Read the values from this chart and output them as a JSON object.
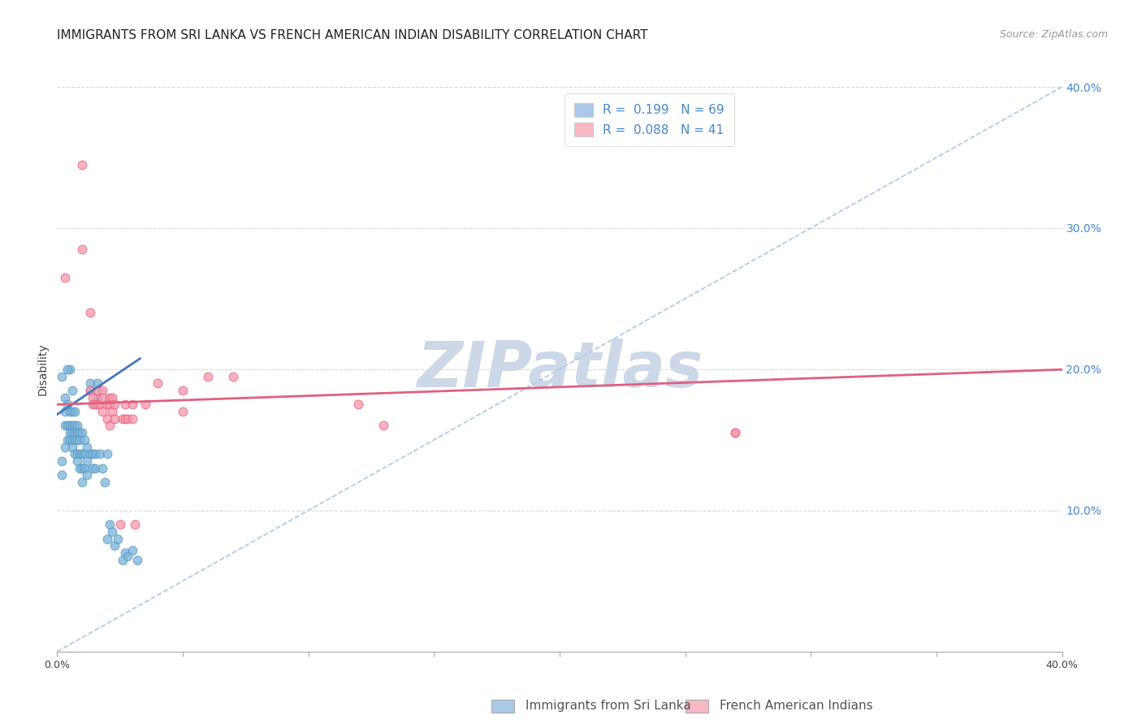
{
  "title": "IMMIGRANTS FROM SRI LANKA VS FRENCH AMERICAN INDIAN DISABILITY CORRELATION CHART",
  "source": "Source: ZipAtlas.com",
  "ylabel": "Disability",
  "xlim": [
    0.0,
    0.4
  ],
  "ylim": [
    0.0,
    0.4
  ],
  "xticks": [
    0.0,
    0.05,
    0.1,
    0.15,
    0.2,
    0.25,
    0.3,
    0.35,
    0.4
  ],
  "yticks": [
    0.1,
    0.2,
    0.3,
    0.4
  ],
  "xticklabels_visible": [
    "0.0%",
    "",
    "",
    "",
    "",
    "",
    "",
    "",
    "40.0%"
  ],
  "yticklabels": [
    "10.0%",
    "20.0%",
    "30.0%",
    "40.0%"
  ],
  "watermark": "ZIPatlas",
  "legend_R1": "R =  0.199",
  "legend_N1": "N = 69",
  "legend_R2": "R =  0.088",
  "legend_N2": "N = 41",
  "blue_scatter": [
    [
      0.002,
      0.195
    ],
    [
      0.003,
      0.18
    ],
    [
      0.003,
      0.17
    ],
    [
      0.003,
      0.16
    ],
    [
      0.004,
      0.175
    ],
    [
      0.004,
      0.16
    ],
    [
      0.004,
      0.15
    ],
    [
      0.005,
      0.2
    ],
    [
      0.005,
      0.17
    ],
    [
      0.005,
      0.16
    ],
    [
      0.005,
      0.155
    ],
    [
      0.005,
      0.15
    ],
    [
      0.006,
      0.185
    ],
    [
      0.006,
      0.17
    ],
    [
      0.006,
      0.16
    ],
    [
      0.006,
      0.155
    ],
    [
      0.006,
      0.15
    ],
    [
      0.006,
      0.145
    ],
    [
      0.007,
      0.17
    ],
    [
      0.007,
      0.16
    ],
    [
      0.007,
      0.155
    ],
    [
      0.007,
      0.15
    ],
    [
      0.007,
      0.14
    ],
    [
      0.008,
      0.16
    ],
    [
      0.008,
      0.155
    ],
    [
      0.008,
      0.15
    ],
    [
      0.008,
      0.14
    ],
    [
      0.008,
      0.135
    ],
    [
      0.009,
      0.155
    ],
    [
      0.009,
      0.15
    ],
    [
      0.009,
      0.14
    ],
    [
      0.009,
      0.13
    ],
    [
      0.01,
      0.155
    ],
    [
      0.01,
      0.14
    ],
    [
      0.01,
      0.13
    ],
    [
      0.01,
      0.12
    ],
    [
      0.011,
      0.15
    ],
    [
      0.011,
      0.14
    ],
    [
      0.011,
      0.13
    ],
    [
      0.012,
      0.145
    ],
    [
      0.012,
      0.135
    ],
    [
      0.012,
      0.125
    ],
    [
      0.013,
      0.19
    ],
    [
      0.013,
      0.185
    ],
    [
      0.013,
      0.14
    ],
    [
      0.014,
      0.14
    ],
    [
      0.014,
      0.13
    ],
    [
      0.015,
      0.14
    ],
    [
      0.015,
      0.13
    ],
    [
      0.016,
      0.19
    ],
    [
      0.016,
      0.18
    ],
    [
      0.017,
      0.14
    ],
    [
      0.018,
      0.13
    ],
    [
      0.019,
      0.12
    ],
    [
      0.02,
      0.14
    ],
    [
      0.02,
      0.08
    ],
    [
      0.021,
      0.09
    ],
    [
      0.022,
      0.085
    ],
    [
      0.023,
      0.075
    ],
    [
      0.024,
      0.08
    ],
    [
      0.026,
      0.065
    ],
    [
      0.027,
      0.07
    ],
    [
      0.028,
      0.068
    ],
    [
      0.03,
      0.072
    ],
    [
      0.032,
      0.065
    ],
    [
      0.004,
      0.2
    ],
    [
      0.003,
      0.145
    ],
    [
      0.002,
      0.135
    ],
    [
      0.002,
      0.125
    ]
  ],
  "pink_scatter": [
    [
      0.003,
      0.265
    ],
    [
      0.01,
      0.345
    ],
    [
      0.01,
      0.285
    ],
    [
      0.013,
      0.24
    ],
    [
      0.013,
      0.185
    ],
    [
      0.014,
      0.18
    ],
    [
      0.014,
      0.175
    ],
    [
      0.015,
      0.175
    ],
    [
      0.016,
      0.185
    ],
    [
      0.016,
      0.175
    ],
    [
      0.017,
      0.175
    ],
    [
      0.018,
      0.185
    ],
    [
      0.018,
      0.18
    ],
    [
      0.018,
      0.17
    ],
    [
      0.02,
      0.175
    ],
    [
      0.02,
      0.165
    ],
    [
      0.021,
      0.18
    ],
    [
      0.021,
      0.175
    ],
    [
      0.021,
      0.16
    ],
    [
      0.022,
      0.18
    ],
    [
      0.022,
      0.17
    ],
    [
      0.023,
      0.175
    ],
    [
      0.023,
      0.165
    ],
    [
      0.025,
      0.09
    ],
    [
      0.026,
      0.165
    ],
    [
      0.027,
      0.175
    ],
    [
      0.027,
      0.165
    ],
    [
      0.028,
      0.165
    ],
    [
      0.03,
      0.175
    ],
    [
      0.03,
      0.165
    ],
    [
      0.031,
      0.09
    ],
    [
      0.035,
      0.175
    ],
    [
      0.04,
      0.19
    ],
    [
      0.05,
      0.185
    ],
    [
      0.05,
      0.17
    ],
    [
      0.06,
      0.195
    ],
    [
      0.07,
      0.195
    ],
    [
      0.12,
      0.175
    ],
    [
      0.13,
      0.16
    ],
    [
      0.27,
      0.155
    ],
    [
      0.27,
      0.155
    ]
  ],
  "blue_line_x": [
    0.0,
    0.033
  ],
  "blue_line_intercept": 0.168,
  "blue_line_slope": 1.2,
  "pink_line_x": [
    0.0,
    0.4
  ],
  "pink_line_intercept": 0.175,
  "pink_line_slope": 0.062,
  "diag_line_x": [
    0.0,
    0.4
  ],
  "diag_line_intercept": 0.0,
  "diag_line_slope": 1.0,
  "scatter_color_blue": "#7ab3d8",
  "scatter_color_pink": "#f599a8",
  "scatter_edge_blue": "#5a9bc4",
  "scatter_edge_pink": "#e86080",
  "line_color_blue": "#4477bb",
  "line_color_pink": "#e06080",
  "line_color_diag": "#aac8e8",
  "legend_patch_blue": "#aac8e8",
  "legend_patch_pink": "#f5b8c4",
  "title_fontsize": 11,
  "tick_fontsize": 9,
  "watermark_color": "#ccd8e8",
  "bg_color": "#ffffff",
  "grid_color": "#d8d8d8",
  "grid_style": "--"
}
